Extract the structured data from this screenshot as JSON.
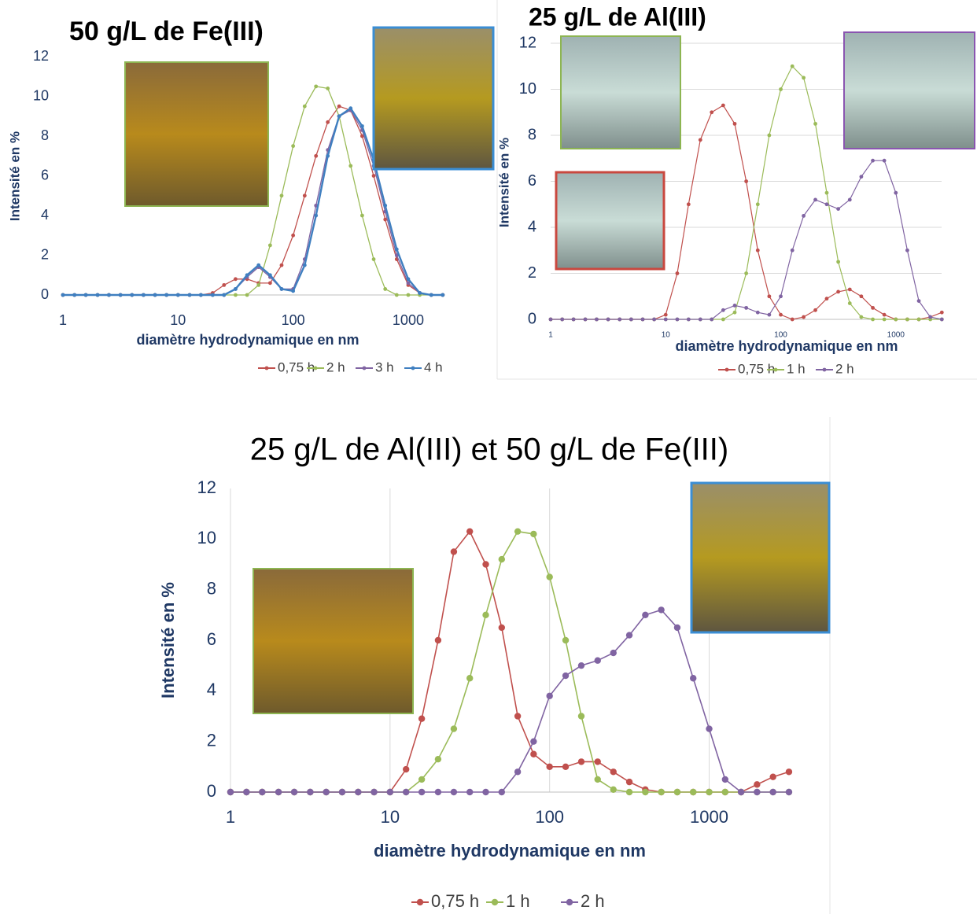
{
  "chart_data": [
    {
      "type": "line",
      "title": "50 g/L de Fe(III)",
      "xlabel": "diamètre hydrodynamique en nm",
      "ylabel": "Intensité en %",
      "xscale": "log",
      "xlim": [
        1,
        2000
      ],
      "ylim": [
        0,
        12
      ],
      "xticks": [
        1,
        10,
        100,
        1000
      ],
      "yticks": [
        0,
        2,
        4,
        6,
        8,
        10,
        12
      ],
      "grid": "none",
      "legend": "bottom",
      "x": [
        1,
        1.26,
        1.58,
        2,
        2.51,
        3.16,
        3.98,
        5.01,
        6.31,
        7.94,
        10,
        12.6,
        15.8,
        20,
        25.1,
        31.6,
        39.8,
        50.1,
        63.1,
        79.4,
        100,
        126,
        158,
        200,
        251,
        316,
        398,
        501,
        631,
        794,
        1000,
        1259,
        1585,
        1995
      ],
      "series": [
        {
          "name": "0,75 h",
          "color": "#c0504d",
          "values": [
            0,
            0,
            0,
            0,
            0,
            0,
            0,
            0,
            0,
            0,
            0,
            0,
            0,
            0.1,
            0.5,
            0.8,
            0.8,
            0.6,
            0.6,
            1.5,
            3,
            5,
            7,
            8.7,
            9.5,
            9.3,
            8,
            6,
            3.8,
            1.8,
            0.5,
            0.1,
            0,
            0
          ]
        },
        {
          "name": "2 h",
          "color": "#9bbb59",
          "values": [
            0,
            0,
            0,
            0,
            0,
            0,
            0,
            0,
            0,
            0,
            0,
            0,
            0,
            0,
            0,
            0,
            0,
            0.5,
            2.5,
            5,
            7.5,
            9.5,
            10.5,
            10.4,
            9,
            6.5,
            4,
            1.8,
            0.3,
            0,
            0,
            0,
            0,
            0
          ]
        },
        {
          "name": "3 h",
          "color": "#8064a2",
          "values": [
            0,
            0,
            0,
            0,
            0,
            0,
            0,
            0,
            0,
            0,
            0,
            0,
            0,
            0,
            0,
            0.3,
            0.9,
            1.4,
            0.9,
            0.3,
            0.3,
            1.8,
            4.5,
            7.3,
            9,
            9.3,
            8.3,
            6.5,
            4.2,
            2,
            0.6,
            0.1,
            0,
            0
          ]
        },
        {
          "name": "4 h",
          "color": "#3f7fc0",
          "values": [
            0,
            0,
            0,
            0,
            0,
            0,
            0,
            0,
            0,
            0,
            0,
            0,
            0,
            0,
            0,
            0.3,
            1,
            1.5,
            1,
            0.3,
            0.2,
            1.5,
            4,
            7,
            9,
            9.4,
            8.5,
            6.8,
            4.5,
            2.3,
            0.8,
            0.1,
            0,
            0
          ]
        }
      ]
    },
    {
      "type": "line",
      "title": "25 g/L de Al(III)",
      "xlabel": "diamètre hydrodynamique en nm",
      "ylabel": "Intensité en %",
      "xscale": "log",
      "xlim": [
        1,
        2500
      ],
      "ylim": [
        0,
        12
      ],
      "xticks": [
        1,
        10,
        100,
        1000
      ],
      "yticks": [
        0,
        2,
        4,
        6,
        8,
        10,
        12
      ],
      "grid": "y",
      "legend": "bottom",
      "x": [
        1,
        1.26,
        1.58,
        2,
        2.51,
        3.16,
        3.98,
        5.01,
        6.31,
        7.94,
        10,
        12.6,
        15.8,
        20,
        25.1,
        31.6,
        39.8,
        50.1,
        63.1,
        79.4,
        100,
        126,
        158,
        200,
        251,
        316,
        398,
        501,
        631,
        794,
        1000,
        1259,
        1585,
        1995,
        2512
      ],
      "series": [
        {
          "name": "0,75 h",
          "color": "#c0504d",
          "values": [
            0,
            0,
            0,
            0,
            0,
            0,
            0,
            0,
            0,
            0,
            0.2,
            2,
            5,
            7.8,
            9,
            9.3,
            8.5,
            6,
            3,
            1,
            0.2,
            0,
            0.1,
            0.4,
            0.9,
            1.2,
            1.3,
            1,
            0.5,
            0.2,
            0,
            0,
            0,
            0.1,
            0.3
          ]
        },
        {
          "name": "1 h",
          "color": "#9bbb59",
          "values": [
            0,
            0,
            0,
            0,
            0,
            0,
            0,
            0,
            0,
            0,
            0,
            0,
            0,
            0,
            0,
            0,
            0.3,
            2,
            5,
            8,
            10,
            11,
            10.5,
            8.5,
            5.5,
            2.5,
            0.7,
            0.1,
            0,
            0,
            0,
            0,
            0,
            0,
            0
          ]
        },
        {
          "name": "2 h",
          "color": "#8064a2",
          "values": [
            0,
            0,
            0,
            0,
            0,
            0,
            0,
            0,
            0,
            0,
            0,
            0,
            0,
            0,
            0,
            0.4,
            0.6,
            0.5,
            0.3,
            0.2,
            1,
            3,
            4.5,
            5.2,
            5,
            4.8,
            5.2,
            6.2,
            6.9,
            6.9,
            5.5,
            3,
            0.8,
            0.1,
            0
          ]
        }
      ]
    },
    {
      "type": "line",
      "title": "25 g/L de Al(III) et 50 g/L de Fe(III)",
      "xlabel": "diamètre hydrodynamique en nm",
      "ylabel": "Intensité en %",
      "xscale": "log",
      "xlim": [
        1,
        3200
      ],
      "ylim": [
        0,
        12
      ],
      "xticks": [
        1,
        10,
        100,
        1000
      ],
      "yticks": [
        0,
        2,
        4,
        6,
        8,
        10,
        12
      ],
      "grid": "x",
      "legend": "bottom",
      "x": [
        1,
        1.26,
        1.58,
        2,
        2.51,
        3.16,
        3.98,
        5.01,
        6.31,
        7.94,
        10,
        12.6,
        15.8,
        20,
        25.1,
        31.6,
        39.8,
        50.1,
        63.1,
        79.4,
        100,
        126,
        158,
        200,
        251,
        316,
        398,
        501,
        631,
        794,
        1000,
        1259,
        1585,
        1995,
        2512,
        3162
      ],
      "series": [
        {
          "name": "0,75 h",
          "color": "#c0504d",
          "values": [
            0,
            0,
            0,
            0,
            0,
            0,
            0,
            0,
            0,
            0,
            0,
            0.9,
            2.9,
            6,
            9.5,
            10.3,
            9,
            6.5,
            3,
            1.5,
            1,
            1,
            1.2,
            1.2,
            0.8,
            0.4,
            0.1,
            0,
            0,
            0,
            0,
            0,
            0,
            0.3,
            0.6,
            0.8
          ]
        },
        {
          "name": "1 h",
          "color": "#9bbb59",
          "values": [
            0,
            0,
            0,
            0,
            0,
            0,
            0,
            0,
            0,
            0,
            0,
            0,
            0.5,
            1.3,
            2.5,
            4.5,
            7,
            9.2,
            10.3,
            10.2,
            8.5,
            6,
            3,
            0.5,
            0.1,
            0,
            0,
            0,
            0,
            0,
            0,
            0,
            0,
            0,
            0,
            0
          ]
        },
        {
          "name": "2 h",
          "color": "#8064a2",
          "values": [
            0,
            0,
            0,
            0,
            0,
            0,
            0,
            0,
            0,
            0,
            0,
            0,
            0,
            0,
            0,
            0,
            0,
            0,
            0.8,
            2,
            3.8,
            4.6,
            5,
            5.2,
            5.5,
            6.2,
            7,
            7.2,
            6.5,
            4.5,
            2.5,
            0.5,
            0,
            0,
            0,
            0
          ]
        }
      ]
    }
  ]
}
